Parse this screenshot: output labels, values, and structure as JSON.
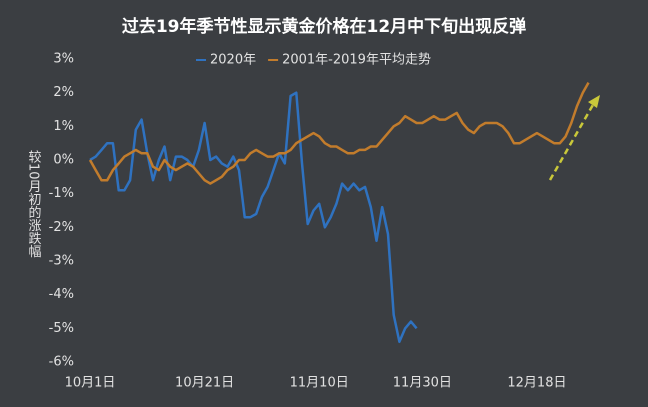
{
  "chart_data": {
    "type": "line",
    "title": "过去19年季节性显示黄金价格在12月中下旬出现反弹",
    "y_label": "较10月初的涨跌幅",
    "categories": [
      "10月1日",
      null,
      null,
      null,
      null,
      null,
      null,
      null,
      null,
      null,
      null,
      null,
      null,
      null,
      null,
      null,
      null,
      null,
      null,
      null,
      "10月21日",
      null,
      null,
      null,
      null,
      null,
      null,
      null,
      null,
      null,
      null,
      null,
      null,
      null,
      null,
      null,
      null,
      null,
      null,
      null,
      "11月10日",
      null,
      null,
      null,
      null,
      null,
      null,
      null,
      null,
      null,
      null,
      null,
      null,
      null,
      null,
      null,
      null,
      null,
      "11月30日",
      null,
      null,
      null,
      null,
      null,
      null,
      null,
      null,
      null,
      null,
      null,
      null,
      null,
      null,
      null,
      null,
      null,
      null,
      null,
      "12月18日",
      null,
      null,
      null,
      null,
      null,
      null,
      null,
      null,
      null
    ],
    "series": [
      {
        "name": "2020年",
        "color": "#2f72c0",
        "values": [
          0,
          0.1,
          0.3,
          0.5,
          0.5,
          -0.9,
          -0.9,
          -0.6,
          0.9,
          1.2,
          0.2,
          -0.6,
          0,
          0.4,
          -0.6,
          0.1,
          0.1,
          0,
          -0.2,
          0.3,
          1.1,
          0,
          0.1,
          -0.1,
          -0.2,
          0.1,
          -0.3,
          -1.7,
          -1.7,
          -1.6,
          -1.1,
          -0.8,
          -0.3,
          0.2,
          -0.1,
          1.9,
          2,
          -0.1,
          -1.9,
          -1.5,
          -1.3,
          -2,
          -1.7,
          -1.3,
          -0.7,
          -0.9,
          -0.7,
          -0.9,
          -0.8,
          -1.4,
          -2.4,
          -1.4,
          -2.2,
          -4.6,
          -5.4,
          -5,
          -4.8,
          -5,
          null,
          null,
          null,
          null,
          null,
          null,
          null,
          null,
          null,
          null,
          null,
          null,
          null,
          null,
          null,
          null,
          null,
          null,
          null,
          null,
          null,
          null,
          null,
          null,
          null,
          null,
          null,
          null,
          null,
          null
        ]
      },
      {
        "name": "2001年-2019年平均走势",
        "color": "#c27c2c",
        "values": [
          0,
          -0.3,
          -0.6,
          -0.6,
          -0.3,
          -0.1,
          0.1,
          0.2,
          0.3,
          0.2,
          0.2,
          -0.2,
          -0.3,
          0,
          -0.2,
          -0.3,
          -0.2,
          -0.1,
          -0.2,
          -0.4,
          -0.6,
          -0.7,
          -0.6,
          -0.5,
          -0.3,
          -0.2,
          0,
          0,
          0.2,
          0.3,
          0.2,
          0.1,
          0.1,
          0.2,
          0.2,
          0.3,
          0.5,
          0.6,
          0.7,
          0.8,
          0.7,
          0.5,
          0.4,
          0.4,
          0.3,
          0.2,
          0.2,
          0.3,
          0.3,
          0.4,
          0.4,
          0.6,
          0.8,
          1,
          1.1,
          1.3,
          1.2,
          1.1,
          1.1,
          1.2,
          1.3,
          1.2,
          1.2,
          1.3,
          1.4,
          1.1,
          0.9,
          0.8,
          1,
          1.1,
          1.1,
          1.1,
          1,
          0.8,
          0.5,
          0.5,
          0.6,
          0.7,
          0.8,
          0.7,
          0.6,
          0.5,
          0.5,
          0.7,
          1.1,
          1.6,
          2,
          2.3
        ]
      }
    ],
    "ylim": [
      -6,
      3
    ],
    "yticks": [
      {
        "value": -6,
        "label": "-6%"
      },
      {
        "value": -5,
        "label": "-5%"
      },
      {
        "value": -4,
        "label": "-4%"
      },
      {
        "value": -3,
        "label": "-3%"
      },
      {
        "value": -2,
        "label": "-2%"
      },
      {
        "value": -1,
        "label": "-1%"
      },
      {
        "value": 0,
        "label": "0%"
      },
      {
        "value": 1,
        "label": "1%"
      },
      {
        "value": 2,
        "label": "2%"
      },
      {
        "value": 3,
        "label": "3%"
      }
    ]
  }
}
